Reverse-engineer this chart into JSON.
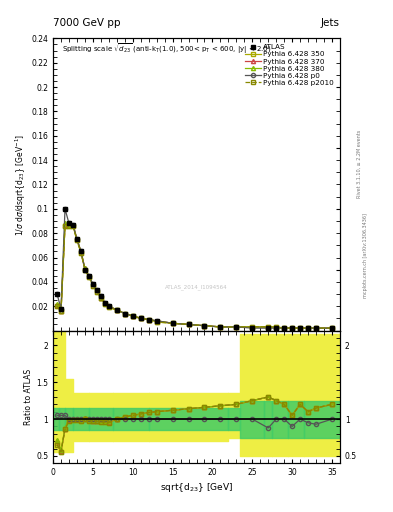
{
  "title_top": "7000 GeV pp",
  "title_right": "Jets",
  "ylabel_main": "1/$\\sigma$ d$\\sigma$/dsqrt{d$_{23}$} [GeV$^{-1}$]",
  "ylabel_ratio": "Ratio to ATLAS",
  "xlabel": "sqrt{d$_{23}$} [GeV]",
  "watermark": "ATLAS_2014_I1094564",
  "rivet_label": "Rivet 3.1.10, ≥ 2.2M events",
  "mcplots_label": "mcplots.cern.ch [arXiv:1306.3436]",
  "x_data": [
    0.5,
    1.0,
    1.5,
    2.0,
    2.5,
    3.0,
    3.5,
    4.0,
    4.5,
    5.0,
    5.5,
    6.0,
    6.5,
    7.0,
    8.0,
    9.0,
    10.0,
    11.0,
    12.0,
    13.0,
    15.0,
    17.0,
    19.0,
    21.0,
    23.0,
    25.0,
    27.0,
    28.0,
    29.0,
    30.0,
    31.0,
    32.0,
    33.0,
    35.0
  ],
  "atlas_y": [
    0.03,
    0.018,
    0.1,
    0.088,
    0.087,
    0.075,
    0.065,
    0.05,
    0.045,
    0.038,
    0.033,
    0.028,
    0.023,
    0.02,
    0.017,
    0.014,
    0.012,
    0.01,
    0.009,
    0.008,
    0.006,
    0.005,
    0.004,
    0.003,
    0.003,
    0.002,
    0.002,
    0.002,
    0.002,
    0.002,
    0.002,
    0.002,
    0.002,
    0.002
  ],
  "py350_y": [
    0.02,
    0.016,
    0.086,
    0.086,
    0.086,
    0.074,
    0.064,
    0.05,
    0.044,
    0.037,
    0.032,
    0.027,
    0.022,
    0.019,
    0.017,
    0.014,
    0.012,
    0.01,
    0.009,
    0.007,
    0.006,
    0.005,
    0.004,
    0.003,
    0.003,
    0.003,
    0.003,
    0.003,
    0.002,
    0.002,
    0.002,
    0.002,
    0.002,
    0.002
  ],
  "py370_y": [
    0.021,
    0.016,
    0.087,
    0.087,
    0.087,
    0.075,
    0.065,
    0.051,
    0.045,
    0.038,
    0.033,
    0.027,
    0.023,
    0.02,
    0.017,
    0.014,
    0.012,
    0.01,
    0.009,
    0.008,
    0.006,
    0.005,
    0.004,
    0.003,
    0.003,
    0.003,
    0.003,
    0.003,
    0.002,
    0.002,
    0.002,
    0.002,
    0.002,
    0.002
  ],
  "py380_y": [
    0.022,
    0.016,
    0.088,
    0.087,
    0.087,
    0.075,
    0.065,
    0.051,
    0.045,
    0.038,
    0.033,
    0.027,
    0.023,
    0.02,
    0.017,
    0.014,
    0.012,
    0.01,
    0.009,
    0.008,
    0.006,
    0.005,
    0.004,
    0.003,
    0.003,
    0.003,
    0.003,
    0.003,
    0.002,
    0.002,
    0.002,
    0.002,
    0.002,
    0.002
  ],
  "pyp0_y": [
    0.03,
    0.018,
    0.1,
    0.088,
    0.087,
    0.075,
    0.065,
    0.05,
    0.045,
    0.038,
    0.033,
    0.028,
    0.023,
    0.02,
    0.017,
    0.014,
    0.012,
    0.01,
    0.009,
    0.008,
    0.006,
    0.005,
    0.004,
    0.003,
    0.003,
    0.002,
    0.002,
    0.002,
    0.002,
    0.002,
    0.002,
    0.002,
    0.002,
    0.002
  ],
  "pyp2010_y": [
    0.02,
    0.016,
    0.086,
    0.086,
    0.086,
    0.074,
    0.064,
    0.05,
    0.044,
    0.037,
    0.032,
    0.027,
    0.022,
    0.019,
    0.017,
    0.014,
    0.012,
    0.01,
    0.009,
    0.007,
    0.006,
    0.005,
    0.004,
    0.003,
    0.003,
    0.003,
    0.003,
    0.003,
    0.002,
    0.002,
    0.002,
    0.002,
    0.002,
    0.002
  ],
  "ratio_py350": [
    0.67,
    0.56,
    0.86,
    0.98,
    0.99,
    0.99,
    0.98,
    1.0,
    0.98,
    0.97,
    0.97,
    0.96,
    0.96,
    0.95,
    1.0,
    1.03,
    1.05,
    1.07,
    1.09,
    1.1,
    1.12,
    1.14,
    1.16,
    1.18,
    1.2,
    1.25,
    1.3,
    1.25,
    1.2,
    1.05,
    1.2,
    1.1,
    1.15,
    1.2
  ],
  "ratio_py370": [
    0.7,
    0.57,
    0.87,
    0.99,
    1.0,
    1.0,
    0.99,
    1.01,
    0.99,
    0.98,
    0.98,
    0.97,
    0.97,
    0.96,
    1.0,
    1.03,
    1.05,
    1.07,
    1.09,
    1.1,
    1.12,
    1.14,
    1.16,
    1.18,
    1.2,
    1.25,
    1.3,
    1.25,
    1.2,
    1.05,
    1.2,
    1.1,
    1.15,
    1.2
  ],
  "ratio_py380": [
    0.72,
    0.58,
    0.88,
    1.0,
    1.0,
    1.0,
    0.99,
    1.01,
    0.99,
    0.99,
    0.98,
    0.98,
    0.97,
    0.97,
    1.0,
    1.03,
    1.05,
    1.07,
    1.09,
    1.1,
    1.12,
    1.14,
    1.16,
    1.18,
    1.2,
    1.25,
    1.3,
    1.25,
    1.2,
    1.05,
    1.2,
    1.1,
    1.15,
    1.2
  ],
  "ratio_pyp0": [
    1.05,
    1.05,
    1.05,
    1.0,
    1.0,
    1.0,
    1.0,
    1.0,
    1.0,
    1.0,
    1.0,
    1.0,
    1.0,
    1.0,
    1.0,
    1.0,
    1.0,
    1.0,
    1.0,
    1.0,
    1.0,
    1.0,
    1.0,
    1.0,
    1.0,
    1.0,
    0.88,
    1.0,
    1.0,
    0.9,
    1.0,
    0.95,
    0.93,
    1.0
  ],
  "ratio_pyp2010": [
    0.65,
    0.56,
    0.86,
    0.98,
    0.99,
    0.99,
    0.98,
    1.0,
    0.98,
    0.97,
    0.97,
    0.96,
    0.96,
    0.95,
    1.0,
    1.03,
    1.05,
    1.07,
    1.09,
    1.1,
    1.12,
    1.14,
    1.16,
    1.18,
    1.2,
    1.25,
    1.3,
    1.25,
    1.2,
    1.05,
    1.2,
    1.1,
    1.15,
    1.2
  ],
  "color_py350": "#aaaa00",
  "color_py370": "#cc4444",
  "color_py380": "#88bb00",
  "color_pyp0": "#555555",
  "color_pyp2010": "#888800",
  "color_atlas": "#000000",
  "color_green_band": "#44cc66",
  "color_yellow_band": "#eeee44",
  "ylim_main": [
    0.0,
    0.24
  ],
  "ylim_ratio": [
    0.4,
    2.2
  ],
  "xlim": [
    0,
    36
  ],
  "yticks_main": [
    0.0,
    0.02,
    0.04,
    0.06,
    0.08,
    0.1,
    0.12,
    0.14,
    0.16,
    0.18,
    0.2,
    0.22,
    0.24
  ],
  "yticks_ratio": [
    0.5,
    1.0,
    1.5,
    2.0
  ],
  "xticks": [
    0,
    5,
    10,
    15,
    20,
    25,
    30,
    35
  ]
}
